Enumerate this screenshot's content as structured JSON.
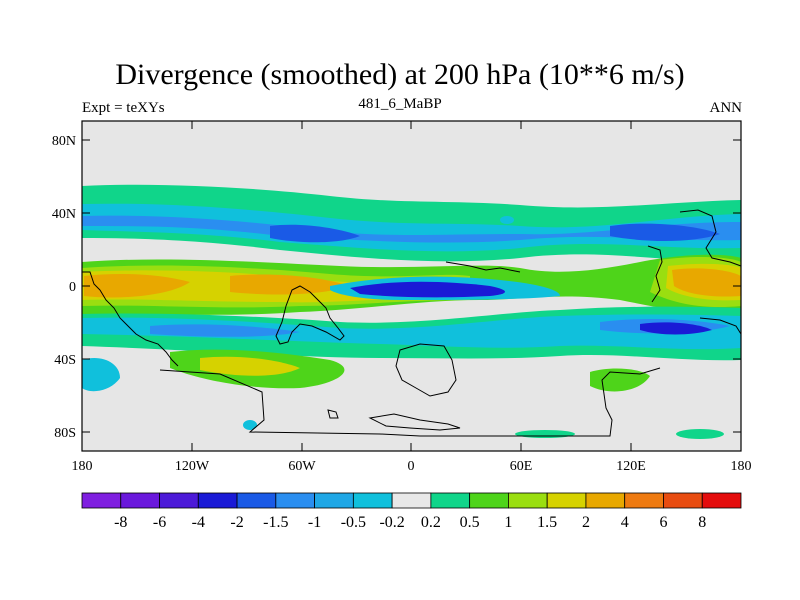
{
  "title": "Divergence (smoothed) at 200 hPa (10**6 m/s)",
  "subtitle_left": "Expt = teXYs",
  "subtitle_center": "481_6_MaBP",
  "subtitle_right": "ANN",
  "y_ticks": [
    "80N",
    "40N",
    "0",
    "40S",
    "80S"
  ],
  "x_ticks": [
    "180",
    "120W",
    "60W",
    "0",
    "60E",
    "120E",
    "180"
  ],
  "colorbar": {
    "labels": [
      "-8",
      "-6",
      "-4",
      "-2",
      "-1.5",
      "-1",
      "-0.5",
      "-0.2",
      "0.2",
      "0.5",
      "1",
      "1.5",
      "2",
      "4",
      "6",
      "8"
    ],
    "colors": [
      "#7f1fe0",
      "#6a18dc",
      "#4c1ad8",
      "#1a1ad6",
      "#1a5ae6",
      "#2a8ef0",
      "#1fa7e6",
      "#10c0dc",
      "#e8e8e8",
      "#10d58a",
      "#4ed41a",
      "#9ade10",
      "#d6d200",
      "#e8a800",
      "#ee7a10",
      "#e84c10",
      "#e40c0c"
    ]
  },
  "colors": {
    "ocean_bg": "#e6e6e6",
    "coast": "#000000"
  }
}
